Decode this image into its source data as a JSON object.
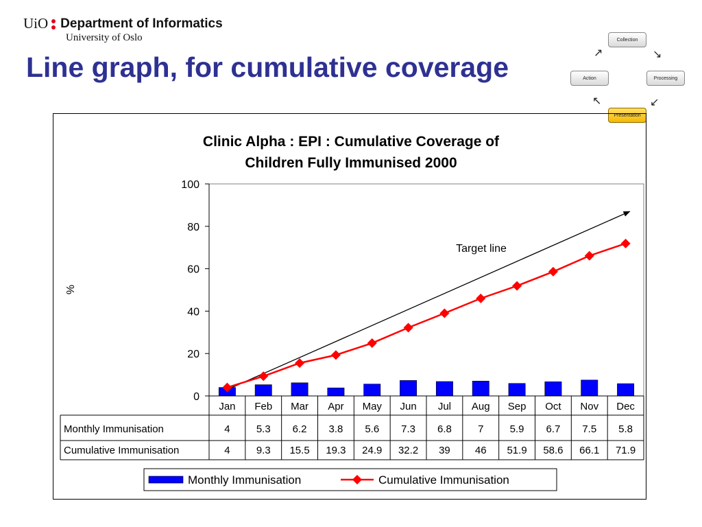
{
  "header": {
    "uio": "UiO",
    "department": "Department of Informatics",
    "university": "University of Oslo"
  },
  "slide_title": "Line graph, for cumulative coverage",
  "cycle": {
    "collection": "Collection",
    "processing": "Processing",
    "presentation": "Presentation",
    "action": "Action",
    "highlight_color": "#f5b800"
  },
  "colors": {
    "title": "#2e3192",
    "bar": "#0000ff",
    "line": "#ff0000",
    "target": "#000000"
  },
  "chart_data": {
    "type": "bar+line",
    "title_lines": [
      "Clinic Alpha : EPI : Cumulative Coverage of",
      "Children Fully Immunised   2000"
    ],
    "ylabel": "%",
    "ylim": [
      0,
      100
    ],
    "yticks": [
      0,
      20,
      40,
      60,
      80,
      100
    ],
    "categories": [
      "Jan",
      "Feb",
      "Mar",
      "Apr",
      "May",
      "Jun",
      "Jul",
      "Aug",
      "Sep",
      "Oct",
      "Nov",
      "Dec"
    ],
    "series": [
      {
        "name": "Monthly Immunisation",
        "type": "bar",
        "values": [
          4,
          5.3,
          6.2,
          3.8,
          5.6,
          7.3,
          6.8,
          7,
          5.9,
          6.7,
          7.5,
          5.8
        ]
      },
      {
        "name": "Cumulative Immunisation",
        "type": "line",
        "values": [
          4,
          9.3,
          15.5,
          19.3,
          24.9,
          32.2,
          39,
          46,
          51.9,
          58.6,
          66.1,
          71.9
        ]
      }
    ],
    "table_rows": [
      {
        "label": "Monthly Immunisation",
        "values": [
          "4",
          "5.3",
          "6.2",
          "3.8",
          "5.6",
          "7.3",
          "6.8",
          "7",
          "5.9",
          "6.7",
          "7.5",
          "5.8"
        ]
      },
      {
        "label": "Cumulative Immunisation",
        "values": [
          "4",
          "9.3",
          "15.5",
          "19.3",
          "24.9",
          "32.2",
          "39",
          "46",
          "51.9",
          "58.6",
          "66.1",
          "71.9"
        ]
      }
    ],
    "annotation": {
      "text": "Target line",
      "from": {
        "x": "Jan",
        "y": 3
      },
      "to": {
        "x": "Dec",
        "y": 87
      }
    },
    "legend": [
      "Monthly Immunisation",
      "Cumulative Immunisation"
    ],
    "legend_position": "bottom",
    "grid": false
  }
}
